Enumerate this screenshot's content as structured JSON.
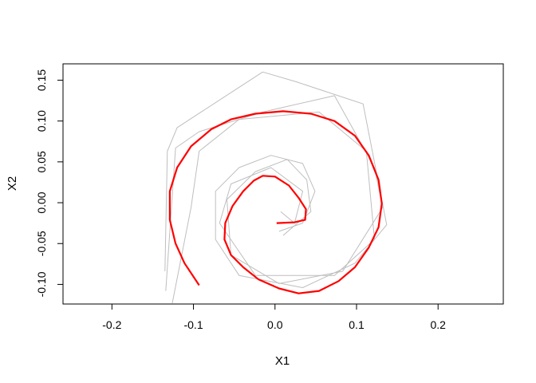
{
  "chart_data": {
    "type": "line",
    "title": "",
    "xlabel": "X1",
    "ylabel": "X2",
    "xlim": [
      -0.26,
      0.28
    ],
    "ylim": [
      -0.124,
      0.17
    ],
    "x_ticks": [
      "-0.2",
      "-0.1",
      "0.0",
      "0.1",
      "0.2"
    ],
    "x_tick_values": [
      -0.2,
      -0.1,
      0.0,
      0.1,
      0.2
    ],
    "y_ticks": [
      "-0.10",
      "-0.05",
      "0.00",
      "0.05",
      "0.10",
      "0.15"
    ],
    "y_tick_values": [
      -0.1,
      -0.05,
      0.0,
      0.05,
      0.1,
      0.15
    ],
    "grid": false,
    "colors": {
      "smooth": "#ff0000",
      "raw": "#bebebe"
    },
    "series": [
      {
        "style": "raw",
        "x": [
          -0.135,
          -0.132,
          -0.12,
          -0.015,
          0.026,
          0.108,
          0.137,
          0.098,
          0.034,
          -0.044,
          -0.073,
          -0.073,
          -0.044,
          -0.005,
          0.034,
          0.049,
          0.034,
          0.005
        ],
        "y": [
          -0.084,
          0.063,
          0.092,
          0.16,
          0.148,
          0.121,
          -0.027,
          -0.074,
          -0.104,
          -0.089,
          -0.045,
          0.014,
          0.043,
          0.058,
          0.048,
          0.014,
          -0.025,
          -0.035
        ]
      },
      {
        "style": "raw",
        "x": [
          -0.134,
          -0.122,
          -0.093,
          -0.015,
          0.073,
          0.122,
          0.132,
          0.083,
          0.005,
          -0.054,
          -0.059,
          -0.024,
          0.015,
          0.039,
          0.044,
          0.01
        ],
        "y": [
          -0.108,
          0.067,
          0.087,
          0.111,
          0.131,
          0.043,
          -0.006,
          -0.084,
          -0.099,
          -0.064,
          0.004,
          0.038,
          0.053,
          0.028,
          -0.011,
          -0.04
        ]
      },
      {
        "style": "raw",
        "x": [
          -0.126,
          -0.103,
          -0.093,
          -0.044,
          0.054,
          0.112,
          0.122,
          0.073,
          -0.024,
          -0.068,
          -0.054,
          -0.005,
          0.034,
          0.024,
          0.007
        ],
        "y": [
          -0.123,
          -0.006,
          0.063,
          0.102,
          0.111,
          0.063,
          -0.045,
          -0.089,
          -0.089,
          -0.025,
          0.023,
          0.043,
          0.014,
          -0.025,
          -0.011
        ]
      },
      {
        "style": "smooth",
        "x": [
          0.002,
          0.024,
          0.037,
          0.038,
          0.029,
          0.017,
          0.0,
          -0.015,
          -0.026,
          -0.039,
          -0.052,
          -0.061,
          -0.062,
          -0.054,
          -0.039,
          -0.02,
          0.005,
          0.029,
          0.054,
          0.078,
          0.098,
          0.115,
          0.127,
          0.131,
          0.127,
          0.115,
          0.098,
          0.073,
          0.044,
          0.01,
          -0.024,
          -0.054,
          -0.078,
          -0.103,
          -0.12,
          -0.129,
          -0.129,
          -0.122,
          -0.111,
          -0.093
        ],
        "y": [
          -0.025,
          -0.024,
          -0.021,
          -0.008,
          0.006,
          0.021,
          0.032,
          0.033,
          0.027,
          0.014,
          -0.004,
          -0.025,
          -0.045,
          -0.064,
          -0.079,
          -0.094,
          -0.105,
          -0.111,
          -0.108,
          -0.096,
          -0.079,
          -0.055,
          -0.03,
          -0.001,
          0.028,
          0.058,
          0.082,
          0.1,
          0.109,
          0.112,
          0.109,
          0.102,
          0.09,
          0.069,
          0.043,
          0.014,
          -0.021,
          -0.05,
          -0.074,
          -0.101
        ]
      }
    ]
  }
}
